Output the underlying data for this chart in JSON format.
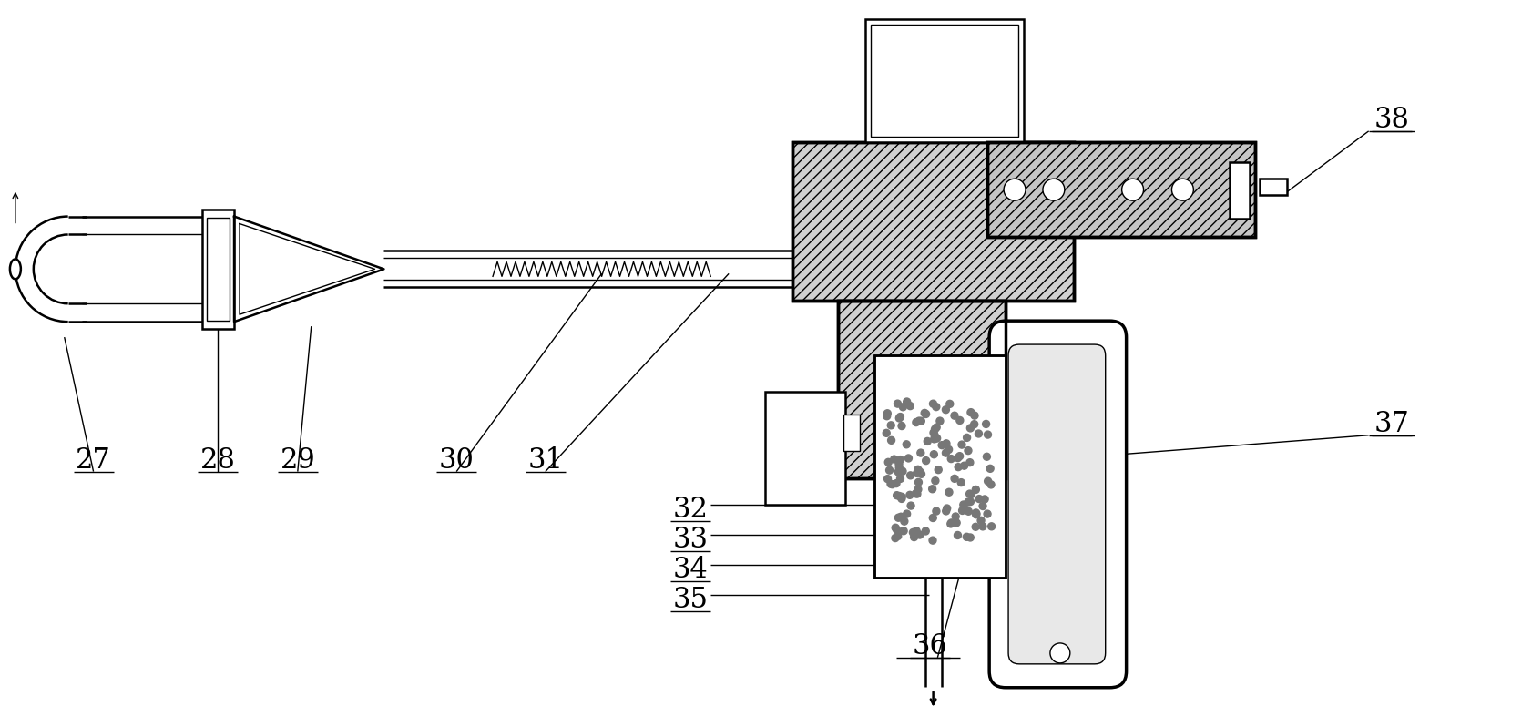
{
  "bg": "#ffffff",
  "lc": "#000000",
  "lw_thin": 1.0,
  "lw_main": 1.8,
  "lw_thick": 2.5,
  "font_size": 20,
  "label_font_size": 22
}
